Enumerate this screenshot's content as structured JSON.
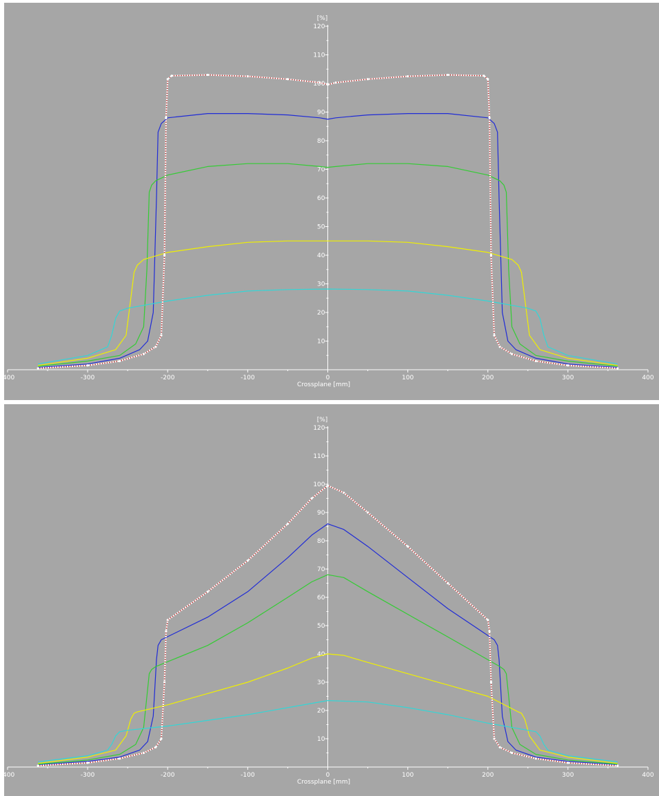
{
  "chart_data": [
    {
      "type": "line",
      "ylabel": "[%]",
      "xlabel": "Crossplane [mm]",
      "xlim": [
        -400,
        400
      ],
      "ylim": [
        0,
        120
      ],
      "x_ticks": [
        "-400",
        "-300",
        "-200",
        "-100",
        "0",
        "100",
        "200",
        "300",
        "400"
      ],
      "y_ticks": [
        "10",
        "20",
        "30",
        "40",
        "50",
        "60",
        "70",
        "80",
        "90",
        "100",
        "110",
        "120"
      ],
      "grid": false,
      "series": [
        {
          "color": "#ffffff",
          "style": "dotted-markers",
          "x": [
            -362,
            -300,
            -260,
            -230,
            -215,
            -208,
            -204,
            -202,
            -200,
            -195,
            -150,
            -100,
            -50,
            -10,
            0,
            10,
            50,
            100,
            150,
            195,
            200,
            202,
            204,
            208,
            215,
            230,
            260,
            300,
            362
          ],
          "y": [
            0.5,
            1.5,
            3,
            5.5,
            8,
            12,
            40,
            88,
            101.5,
            102.7,
            103,
            102.5,
            101.5,
            100.3,
            99.6,
            100.3,
            101.5,
            102.5,
            103,
            102.7,
            101.5,
            88,
            40,
            12,
            8,
            5.5,
            3,
            1.5,
            0.5
          ]
        },
        {
          "color": "#cc2222",
          "style": "solid",
          "x": [
            -362,
            -300,
            -260,
            -230,
            -215,
            -208,
            -204,
            -202,
            -200,
            -195,
            -150,
            -100,
            -50,
            -10,
            0,
            10,
            50,
            100,
            150,
            195,
            200,
            202,
            204,
            208,
            215,
            230,
            260,
            300,
            362
          ],
          "y": [
            0.5,
            1.5,
            3,
            5.5,
            8,
            12,
            40,
            88,
            101.5,
            102.7,
            103,
            102.5,
            101.5,
            100.3,
            99.6,
            100.3,
            101.5,
            102.5,
            103,
            102.7,
            101.5,
            88,
            40,
            12,
            8,
            5.5,
            3,
            1.5,
            0.5
          ]
        },
        {
          "color": "#1f2bd6",
          "style": "solid",
          "x": [
            -362,
            -300,
            -260,
            -235,
            -225,
            -218,
            -214,
            -212,
            -208,
            -200,
            -150,
            -100,
            -50,
            -10,
            0,
            10,
            50,
            100,
            150,
            200,
            208,
            212,
            214,
            218,
            225,
            235,
            260,
            300,
            362
          ],
          "y": [
            0.8,
            2,
            4,
            7,
            10,
            20,
            60,
            83,
            86,
            88,
            89.5,
            89.5,
            89,
            88,
            87.5,
            88,
            89,
            89.5,
            89.5,
            88,
            86,
            83,
            60,
            20,
            10,
            7,
            4,
            2,
            0.8
          ]
        },
        {
          "color": "#33cc33",
          "style": "solid",
          "x": [
            -362,
            -300,
            -260,
            -240,
            -230,
            -226,
            -223,
            -220,
            -215,
            -200,
            -150,
            -100,
            -50,
            -10,
            0,
            10,
            50,
            100,
            150,
            200,
            215,
            220,
            223,
            226,
            230,
            240,
            260,
            300,
            362
          ],
          "y": [
            1.2,
            3,
            5,
            9,
            15,
            35,
            62,
            64.5,
            66,
            68,
            71,
            72,
            72,
            71,
            70.7,
            71,
            72,
            72,
            71,
            68,
            66,
            64.5,
            62,
            35,
            15,
            9,
            5,
            3,
            1.2
          ]
        },
        {
          "color": "#f0f000",
          "style": "solid",
          "x": [
            -362,
            -300,
            -265,
            -252,
            -246,
            -242,
            -238,
            -230,
            -200,
            -150,
            -100,
            -50,
            0,
            50,
            100,
            150,
            200,
            230,
            238,
            242,
            246,
            252,
            265,
            300,
            362
          ],
          "y": [
            1.5,
            4,
            7,
            12,
            25,
            34,
            36.5,
            38.5,
            41,
            43,
            44.5,
            45,
            45,
            45,
            44.5,
            43,
            41,
            38.5,
            36.5,
            34,
            25,
            12,
            7,
            4,
            1.5
          ]
        },
        {
          "color": "#33d6d6",
          "style": "solid",
          "x": [
            -362,
            -300,
            -275,
            -270,
            -265,
            -260,
            -250,
            -200,
            -150,
            -100,
            -50,
            0,
            50,
            100,
            150,
            200,
            250,
            260,
            265,
            270,
            275,
            300,
            362
          ],
          "y": [
            2,
            5,
            8,
            12,
            18,
            20.5,
            21.5,
            24,
            26,
            27.5,
            28,
            28.2,
            28,
            27.5,
            26,
            24,
            21.5,
            20.5,
            18,
            12,
            8,
            5,
            2
          ]
        }
      ]
    },
    {
      "type": "line",
      "ylabel": "[%]",
      "xlabel": "Crossplane [mm]",
      "xlim": [
        -400,
        400
      ],
      "ylim": [
        0,
        120
      ],
      "x_ticks": [
        "-400",
        "-300",
        "-200",
        "-100",
        "0",
        "100",
        "200",
        "300",
        "400"
      ],
      "y_ticks": [
        "10",
        "20",
        "30",
        "40",
        "50",
        "60",
        "70",
        "80",
        "90",
        "100",
        "110",
        "120"
      ],
      "grid": false,
      "series": [
        {
          "color": "#ffffff",
          "style": "dotted-markers",
          "x": [
            -362,
            -300,
            -260,
            -230,
            -215,
            -208,
            -204,
            -202,
            -200,
            -150,
            -100,
            -50,
            -20,
            0,
            20,
            50,
            100,
            150,
            200,
            202,
            204,
            208,
            215,
            230,
            260,
            300,
            362
          ],
          "y": [
            0.5,
            1.5,
            3,
            5,
            7,
            10,
            30,
            48,
            52,
            62,
            73,
            86,
            95,
            99.5,
            97,
            90,
            78,
            65,
            52,
            48,
            30,
            10,
            7,
            5,
            3,
            1.5,
            0.5
          ]
        },
        {
          "color": "#cc2222",
          "style": "solid",
          "x": [
            -362,
            -300,
            -260,
            -230,
            -215,
            -208,
            -204,
            -202,
            -200,
            -150,
            -100,
            -50,
            -20,
            0,
            20,
            50,
            100,
            150,
            200,
            202,
            204,
            208,
            215,
            230,
            260,
            300,
            362
          ],
          "y": [
            0.5,
            1.5,
            3,
            5,
            7,
            10,
            30,
            48,
            52,
            62,
            73,
            86,
            95,
            99.5,
            97,
            90,
            78,
            65,
            52,
            48,
            30,
            10,
            7,
            5,
            3,
            1.5,
            0.5
          ]
        },
        {
          "color": "#1f2bd6",
          "style": "solid",
          "x": [
            -362,
            -300,
            -260,
            -235,
            -225,
            -218,
            -214,
            -212,
            -208,
            -150,
            -100,
            -50,
            -20,
            0,
            20,
            50,
            100,
            150,
            208,
            212,
            214,
            218,
            225,
            235,
            260,
            300,
            362
          ],
          "y": [
            0.8,
            2,
            3.5,
            6,
            9,
            18,
            38,
            43,
            45,
            53,
            62,
            74,
            82,
            86,
            84,
            78,
            67,
            56,
            45,
            43,
            38,
            18,
            9,
            6,
            3.5,
            2,
            0.8
          ]
        },
        {
          "color": "#33cc33",
          "style": "solid",
          "x": [
            -362,
            -300,
            -260,
            -240,
            -230,
            -226,
            -223,
            -220,
            -215,
            -150,
            -100,
            -50,
            -20,
            0,
            20,
            50,
            100,
            150,
            215,
            220,
            223,
            226,
            230,
            240,
            260,
            300,
            362
          ],
          "y": [
            1,
            2.5,
            4.5,
            8,
            14,
            25,
            33,
            34.5,
            35.5,
            43,
            51,
            60,
            65.5,
            68,
            67,
            62,
            54,
            46,
            35.5,
            34.5,
            33,
            25,
            14,
            8,
            4.5,
            2.5,
            1
          ]
        },
        {
          "color": "#f0f000",
          "style": "solid",
          "x": [
            -362,
            -300,
            -265,
            -252,
            -246,
            -242,
            -238,
            -200,
            -150,
            -100,
            -50,
            -20,
            0,
            20,
            50,
            100,
            150,
            200,
            238,
            242,
            246,
            252,
            265,
            300,
            362
          ],
          "y": [
            1.3,
            3.5,
            6,
            11,
            17,
            19,
            19.5,
            22,
            26,
            30,
            35,
            38.5,
            40,
            39.5,
            37,
            33,
            29,
            25,
            19.5,
            19,
            17,
            11,
            6,
            3.5,
            1.3
          ]
        },
        {
          "color": "#33d6d6",
          "style": "solid",
          "x": [
            -362,
            -300,
            -275,
            -270,
            -265,
            -260,
            -250,
            -200,
            -150,
            -100,
            -50,
            0,
            50,
            100,
            150,
            200,
            250,
            260,
            265,
            270,
            275,
            300,
            362
          ],
          "y": [
            1.8,
            4,
            6,
            8,
            11,
            12.5,
            13,
            14.5,
            16.5,
            18.5,
            21,
            23.5,
            23,
            21,
            18.5,
            15.5,
            13,
            12.5,
            11,
            8,
            6,
            4,
            1.8
          ]
        }
      ]
    }
  ]
}
